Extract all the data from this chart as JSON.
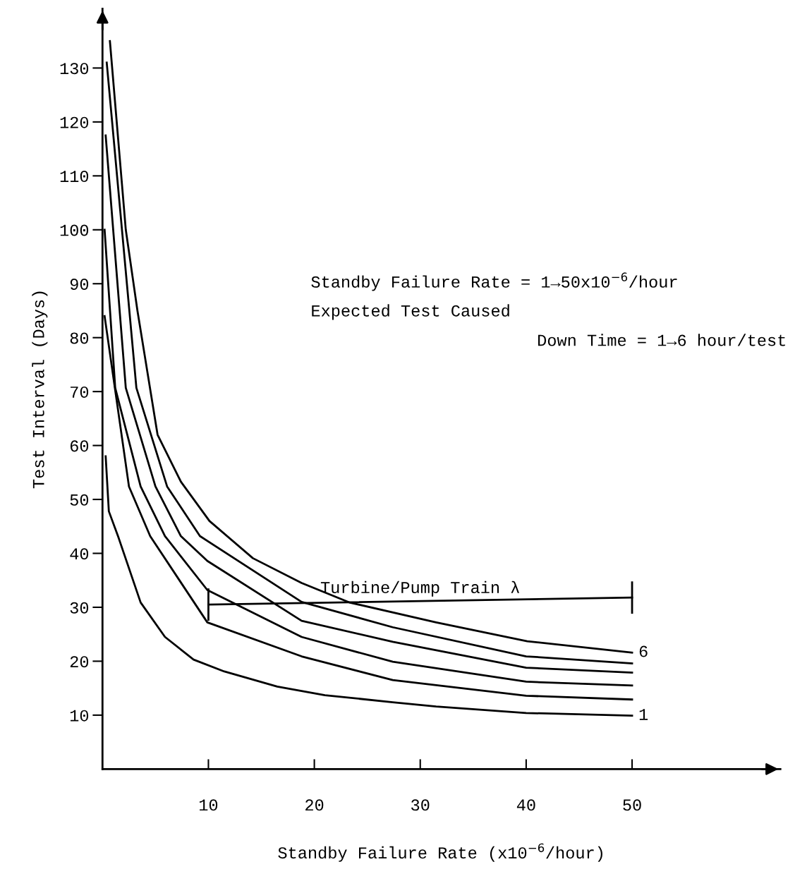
{
  "chart_data": {
    "type": "line",
    "xlabel": "Standby Failure Rate (x10$^{−6}$/hour)",
    "ylabel": "Test Interval (Days)",
    "xlim": [
      0,
      64
    ],
    "xticks": [
      10,
      20,
      30,
      40,
      50
    ],
    "ylim": [
      0,
      141
    ],
    "yticks": [
      10,
      20,
      30,
      40,
      50,
      60,
      70,
      80,
      90,
      100,
      110,
      120,
      130
    ],
    "grid": false,
    "legend": false,
    "marker": "none",
    "line_style": "solid",
    "series": [
      {
        "name": "1",
        "color": "#000000",
        "x": [
          0.3,
          0.6,
          1.5,
          3.6,
          5.9,
          8.6,
          11.5,
          16.5,
          21,
          27.4,
          31.5,
          40,
          50
        ],
        "values": [
          58,
          47.8,
          43,
          30.9,
          24.5,
          20.3,
          18.1,
          15.3,
          13.7,
          12.4,
          11.6,
          10.4,
          9.9
        ]
      },
      {
        "color": "#000000",
        "x": [
          0.2,
          2.5,
          4.5,
          9.9,
          18.8,
          27.4,
          40,
          50
        ],
        "values": [
          84,
          52.4,
          43.2,
          27.2,
          20.9,
          16.5,
          13.6,
          12.9
        ]
      },
      {
        "color": "#000000",
        "x": [
          0.2,
          1.2,
          3.6,
          5.9,
          9.9,
          18.8,
          27.4,
          40,
          50
        ],
        "values": [
          100,
          70.7,
          52.4,
          43.2,
          33.2,
          24.5,
          19.9,
          16.2,
          15.5
        ]
      },
      {
        "color": "#000000",
        "x": [
          0.3,
          2.2,
          5.0,
          7.4,
          9.9,
          18.8,
          27.4,
          40,
          50
        ],
        "values": [
          117.5,
          70.7,
          52.4,
          43.2,
          38.6,
          27.5,
          23.6,
          18.8,
          17.9
        ]
      },
      {
        "color": "#000000",
        "x": [
          0.4,
          3.2,
          6.1,
          9.2,
          18.8,
          27.4,
          40,
          50
        ],
        "values": [
          131,
          70.7,
          52.4,
          43.2,
          31,
          26.3,
          20.9,
          19.6
        ]
      },
      {
        "color": "#000000",
        "x": [
          10,
          50
        ],
        "values": [
          30.5,
          31.8
        ],
        "errors": [
          3,
          3
        ]
      },
      {
        "name": "6",
        "color": "#000000",
        "x": [
          0.7,
          2.2,
          3.3,
          5.2,
          7.4,
          10.1,
          14.2,
          18.8,
          23.3,
          31.5,
          40.1,
          50
        ],
        "values": [
          135,
          100,
          85,
          62,
          53.3,
          46,
          39.1,
          34.5,
          30.9,
          27.2,
          23.7,
          21.6
        ]
      }
    ],
    "annotations": [
      {
        "text": "Turbine/Pump Train λ",
        "x": 30,
        "y": 31.2
      },
      "Standby Failure Rate = 1→50x10$^{−6}$/hour",
      "Expected Test Caused",
      "Down Time = 1→6 hour/test"
    ]
  }
}
